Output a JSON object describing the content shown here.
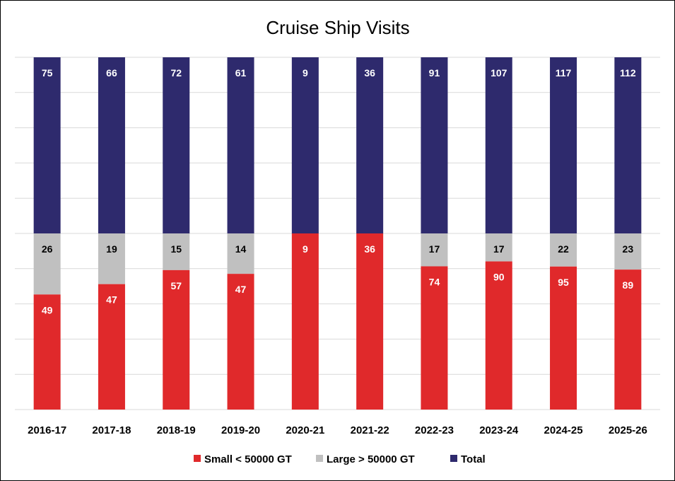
{
  "chart_data": {
    "type": "bar",
    "stacked": "100%",
    "title": "Cruise Ship Visits",
    "categories": [
      "2016-17",
      "2017-18",
      "2018-19",
      "2019-20",
      "2020-21",
      "2021-22",
      "2022-23",
      "2023-24",
      "2024-25",
      "2025-26"
    ],
    "series": [
      {
        "name": "Small < 50000 GT",
        "color": "#e0292b",
        "values": [
          49,
          47,
          57,
          47,
          9,
          36,
          74,
          90,
          95,
          89
        ]
      },
      {
        "name": "Large > 50000 GT",
        "color": "#c0c0c0",
        "values": [
          26,
          19,
          15,
          14,
          0,
          0,
          17,
          17,
          22,
          23
        ]
      },
      {
        "name": "Total",
        "color": "#2e2a6d",
        "values": [
          75,
          66,
          72,
          61,
          9,
          36,
          91,
          107,
          117,
          112
        ]
      }
    ],
    "large_labels_shown": [
      true,
      true,
      true,
      true,
      false,
      false,
      true,
      true,
      true,
      true
    ],
    "grid": true,
    "legend_position": "bottom"
  }
}
